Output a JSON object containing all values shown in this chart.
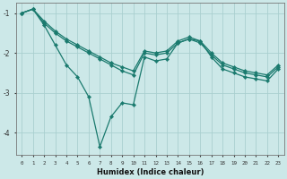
{
  "xlabel": "Humidex (Indice chaleur)",
  "bg_color": "#cce8e8",
  "grid_color": "#aacfcf",
  "line_color": "#1a7a6e",
  "xlim": [
    -0.5,
    23.5
  ],
  "ylim": [
    -4.55,
    -0.75
  ],
  "yticks": [
    -4,
    -3,
    -2,
    -1
  ],
  "xticks": [
    0,
    1,
    2,
    3,
    4,
    5,
    6,
    7,
    8,
    9,
    10,
    11,
    12,
    13,
    14,
    15,
    16,
    17,
    18,
    19,
    20,
    21,
    22,
    23
  ],
  "series1_x": [
    0,
    1,
    2,
    3,
    4,
    5,
    6,
    7,
    8,
    9,
    10,
    11,
    12,
    13,
    14,
    15,
    16,
    17,
    18,
    19,
    20,
    21,
    22,
    23
  ],
  "series1_y": [
    -1.0,
    -0.9,
    -1.3,
    -1.8,
    -2.3,
    -2.6,
    -3.1,
    -4.35,
    -3.6,
    -3.25,
    -3.3,
    -2.1,
    -2.2,
    -2.15,
    -1.75,
    -1.65,
    -1.7,
    -2.1,
    -2.4,
    -2.5,
    -2.6,
    -2.65,
    -2.7,
    -2.4
  ],
  "series2_x": [
    0,
    1,
    2,
    3,
    4,
    5,
    6,
    7,
    8,
    9,
    10,
    11,
    12,
    13,
    14,
    15,
    16,
    17,
    18,
    19,
    20,
    21,
    22,
    23
  ],
  "series2_y": [
    -1.0,
    -0.9,
    -1.25,
    -1.5,
    -1.7,
    -1.85,
    -2.0,
    -2.15,
    -2.3,
    -2.45,
    -2.55,
    -2.0,
    -2.05,
    -2.0,
    -1.75,
    -1.65,
    -1.75,
    -2.05,
    -2.3,
    -2.4,
    -2.5,
    -2.55,
    -2.6,
    -2.35
  ],
  "series3_x": [
    0,
    1,
    2,
    3,
    4,
    5,
    6,
    7,
    8,
    9,
    10,
    11,
    12,
    13,
    14,
    15,
    16,
    17,
    18,
    19,
    20,
    21,
    22,
    23
  ],
  "series3_y": [
    -1.0,
    -0.9,
    -1.2,
    -1.45,
    -1.65,
    -1.8,
    -1.95,
    -2.1,
    -2.25,
    -2.35,
    -2.45,
    -1.95,
    -2.0,
    -1.95,
    -1.7,
    -1.6,
    -1.7,
    -2.0,
    -2.25,
    -2.35,
    -2.45,
    -2.5,
    -2.55,
    -2.3
  ]
}
